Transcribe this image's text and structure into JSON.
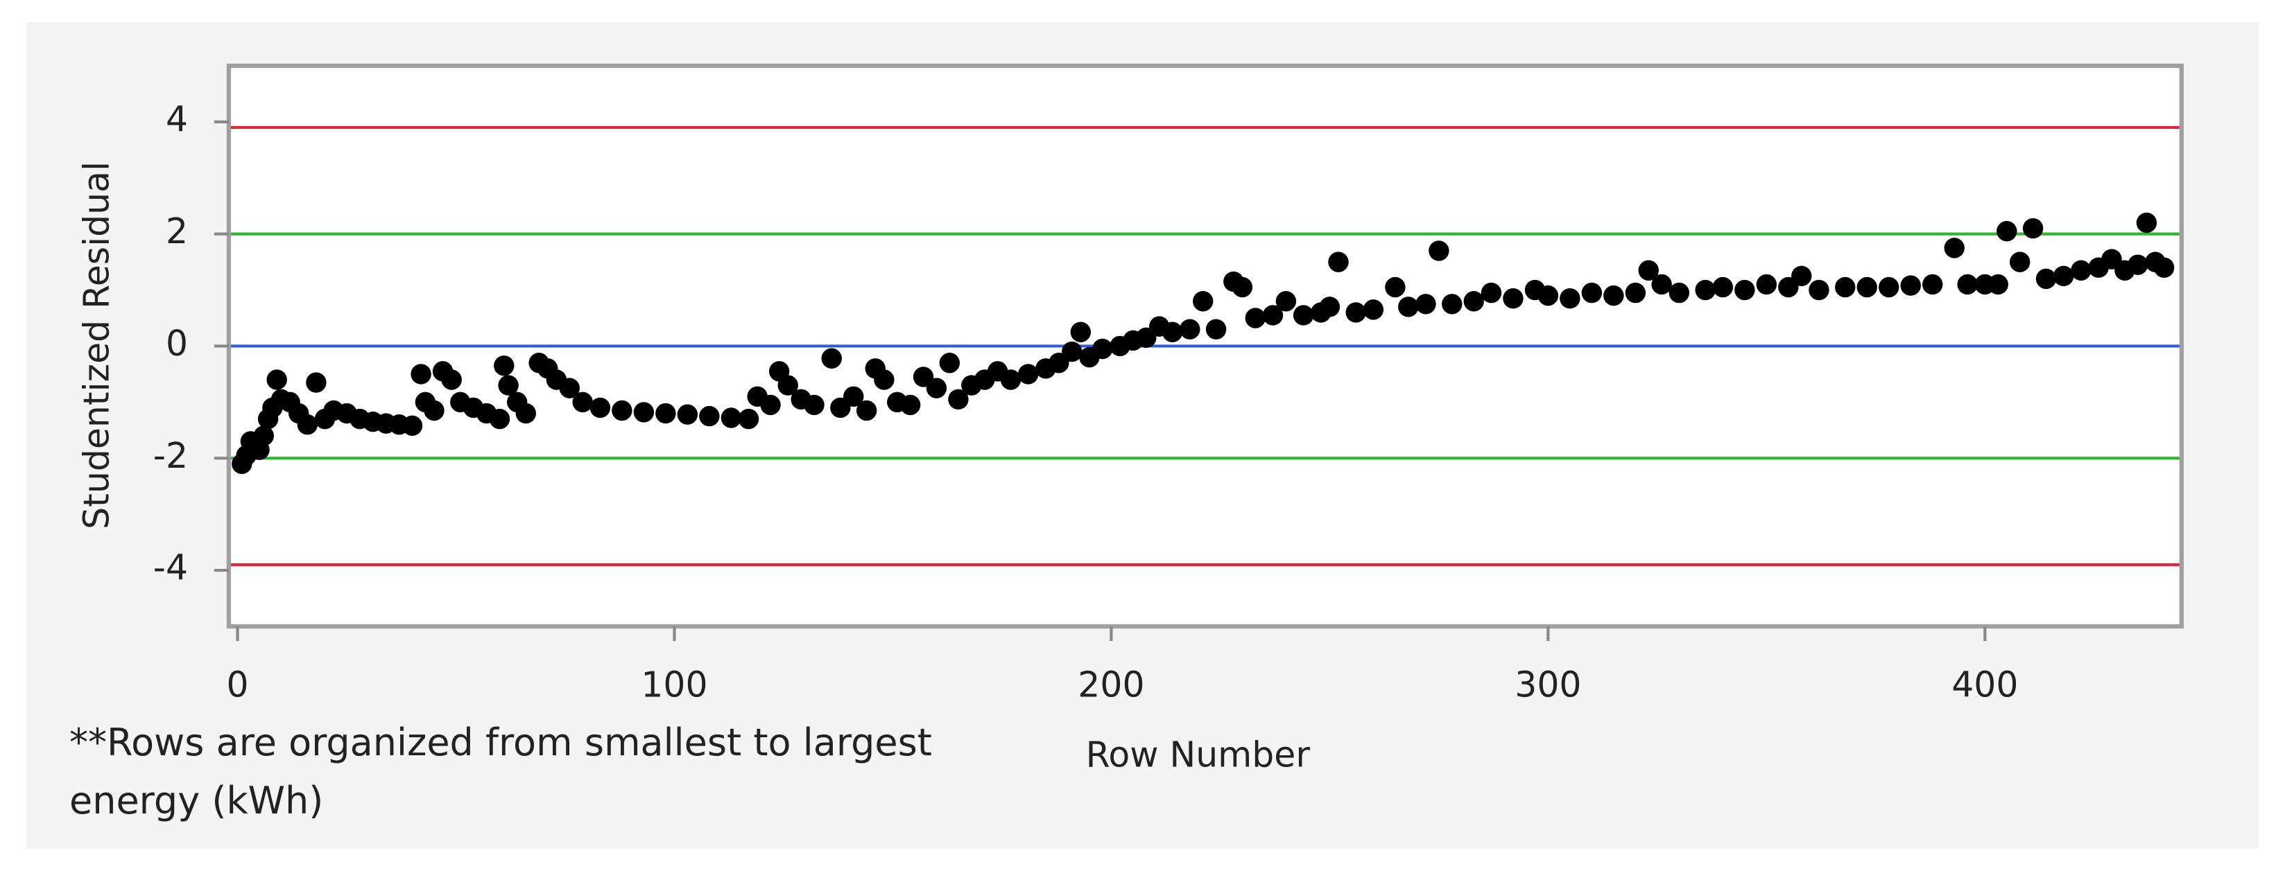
{
  "chart_data": {
    "type": "scatter",
    "x_label": "Row Number",
    "y_label": "Studentized Residual",
    "note": "**Rows are organized from smallest to largest energy (kWh)",
    "color": "#000000",
    "xlim": [
      -2,
      445
    ],
    "ylim": [
      -5,
      5
    ],
    "xticks": [
      0,
      100,
      200,
      300,
      400
    ],
    "yticks": [
      -4,
      -2,
      0,
      2,
      4
    ],
    "reference_lines": [
      {
        "value": 3.9,
        "color": "#e0283c"
      },
      {
        "value": -3.9,
        "color": "#e0283c"
      },
      {
        "value": 2,
        "color": "#2eb82e"
      },
      {
        "value": -2,
        "color": "#2eb82e"
      },
      {
        "value": 0,
        "color": "#2f5fd6"
      }
    ],
    "x": [
      1,
      2,
      3,
      5,
      6,
      7,
      8,
      9,
      10,
      12,
      14,
      16,
      18,
      20,
      22,
      25,
      28,
      31,
      34,
      37,
      40,
      42,
      43,
      45,
      47,
      49,
      51,
      54,
      57,
      60,
      61,
      62,
      64,
      66,
      69,
      71,
      73,
      76,
      79,
      83,
      88,
      93,
      98,
      103,
      108,
      113,
      117,
      119,
      122,
      124,
      126,
      129,
      132,
      136,
      138,
      141,
      144,
      146,
      148,
      151,
      154,
      157,
      160,
      163,
      165,
      168,
      171,
      174,
      177,
      181,
      185,
      188,
      191,
      193,
      195,
      198,
      202,
      205,
      208,
      211,
      214,
      218,
      221,
      224,
      228,
      230,
      233,
      237,
      240,
      244,
      248,
      250,
      252,
      256,
      260,
      265,
      268,
      272,
      275,
      278,
      283,
      287,
      292,
      297,
      300,
      305,
      310,
      315,
      320,
      323,
      326,
      330,
      336,
      340,
      345,
      350,
      355,
      358,
      362,
      368,
      373,
      378,
      383,
      388,
      393,
      396,
      400,
      403,
      405,
      408,
      411,
      414,
      418,
      422,
      426,
      429,
      432,
      435,
      437,
      439,
      441
    ],
    "values": [
      -2.1,
      -1.95,
      -1.7,
      -1.85,
      -1.6,
      -1.3,
      -1.1,
      -0.6,
      -0.95,
      -1.0,
      -1.2,
      -1.4,
      -0.65,
      -1.3,
      -1.15,
      -1.2,
      -1.3,
      -1.35,
      -1.38,
      -1.4,
      -1.42,
      -0.5,
      -1.0,
      -1.15,
      -0.45,
      -0.6,
      -1.0,
      -1.1,
      -1.2,
      -1.3,
      -0.35,
      -0.7,
      -1.0,
      -1.2,
      -0.3,
      -0.4,
      -0.6,
      -0.75,
      -1.0,
      -1.1,
      -1.15,
      -1.18,
      -1.2,
      -1.22,
      -1.25,
      -1.28,
      -1.3,
      -0.9,
      -1.05,
      -0.45,
      -0.7,
      -0.95,
      -1.05,
      -0.22,
      -1.1,
      -0.9,
      -1.15,
      -0.4,
      -0.6,
      -1.0,
      -1.05,
      -0.55,
      -0.75,
      -0.3,
      -0.95,
      -0.7,
      -0.6,
      -0.45,
      -0.6,
      -0.5,
      -0.4,
      -0.3,
      -0.1,
      0.25,
      -0.2,
      -0.05,
      0.0,
      0.1,
      0.15,
      0.35,
      0.25,
      0.3,
      0.8,
      0.3,
      1.15,
      1.05,
      0.5,
      0.55,
      0.8,
      0.55,
      0.6,
      0.7,
      1.5,
      0.6,
      0.65,
      1.05,
      0.7,
      0.75,
      1.7,
      0.75,
      0.8,
      0.95,
      0.85,
      1.0,
      0.9,
      0.85,
      0.95,
      0.9,
      0.95,
      1.35,
      1.1,
      0.95,
      1.0,
      1.05,
      1.0,
      1.1,
      1.05,
      1.25,
      1.0,
      1.05,
      1.05,
      1.05,
      1.08,
      1.1,
      1.75,
      1.1,
      1.1,
      1.1,
      2.05,
      1.5,
      2.1,
      1.2,
      1.25,
      1.35,
      1.4,
      1.55,
      1.35,
      1.45,
      2.2,
      1.5,
      1.4
    ]
  }
}
